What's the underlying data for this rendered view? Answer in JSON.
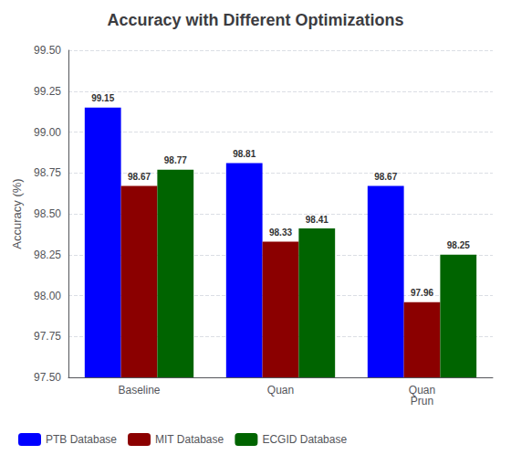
{
  "chart_data": {
    "type": "bar",
    "title": "Accuracy with Different Optimizations",
    "ylabel": "Accuracy (%)",
    "categories": [
      "Baseline",
      "Quan",
      "Quan\nPrun"
    ],
    "series": [
      {
        "name": "PTB Database",
        "color": "#0000FF",
        "values": [
          99.15,
          98.81,
          98.67
        ]
      },
      {
        "name": "MIT Database",
        "color": "#8B0000",
        "values": [
          98.67,
          98.33,
          97.96
        ]
      },
      {
        "name": "ECGID Database",
        "color": "#006400",
        "values": [
          98.77,
          98.41,
          98.25
        ]
      }
    ],
    "ylim": [
      97.5,
      99.5
    ],
    "yticks": [
      {
        "value": 97.5,
        "label": "97.50"
      },
      {
        "value": 97.75,
        "label": "97.75"
      },
      {
        "value": 98.0,
        "label": "98.00"
      },
      {
        "value": 98.25,
        "label": "98.25"
      },
      {
        "value": 98.5,
        "label": "98.50"
      },
      {
        "value": 98.75,
        "label": "98.75"
      },
      {
        "value": 99.0,
        "label": "99.00"
      },
      {
        "value": 99.25,
        "label": "99.25"
      },
      {
        "value": 99.5,
        "label": "99.50"
      }
    ],
    "grid": true,
    "legend": "lower left",
    "data_labels": true
  }
}
